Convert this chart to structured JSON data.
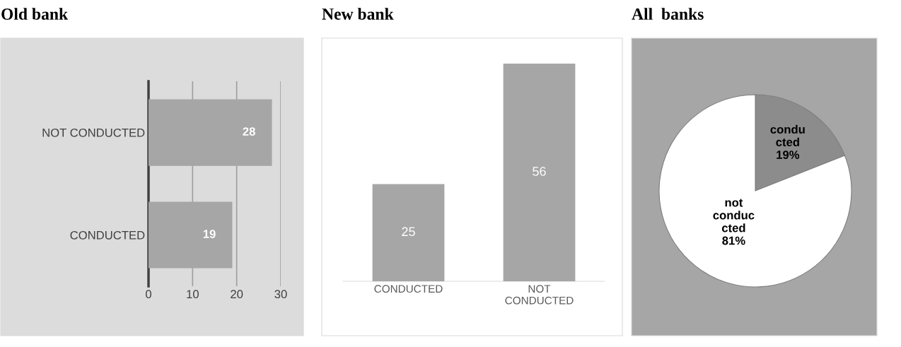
{
  "chart_data": [
    {
      "type": "bar",
      "title": "Old bank",
      "orientation": "horizontal",
      "categories": [
        "NOT CONDUCTED",
        "CONDUCTED"
      ],
      "values": [
        28,
        19
      ],
      "color": "#a6a6a6",
      "xlim": [
        0,
        30
      ],
      "xticks": [
        0,
        10,
        20,
        30
      ],
      "grid": "x",
      "data_labels": true
    },
    {
      "type": "bar",
      "title": "New bank",
      "categories": [
        "CONDUCTED",
        "NOT\nCONDUCTED"
      ],
      "values": [
        25,
        56
      ],
      "color": "#a6a6a6",
      "data_labels": true,
      "tick_labels": "x"
    },
    {
      "type": "pie",
      "title": "All  banks",
      "categories": [
        "condu\ncted",
        "not\nconduc\ncted"
      ],
      "values": [
        19,
        81
      ],
      "colors": [
        "#8c8c8c",
        "#ffffff"
      ],
      "value_labels": [
        "19%",
        "81%"
      ]
    }
  ]
}
